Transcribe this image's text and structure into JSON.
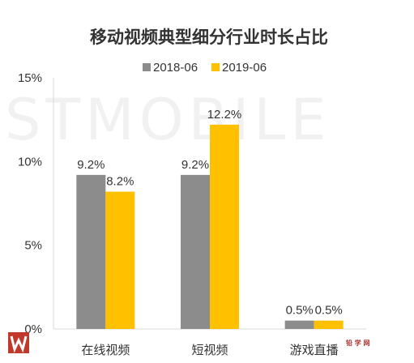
{
  "chart_data": {
    "type": "bar",
    "title": "移动视频典型细分行业时长占比",
    "categories": [
      "在线视频",
      "短视频",
      "游戏直播"
    ],
    "series": [
      {
        "name": "2018-06",
        "values": [
          9.2,
          9.2,
          0.5
        ],
        "labels": [
          "9.2%",
          "9.2%",
          "0.5%"
        ],
        "color": "#8c8c8c"
      },
      {
        "name": "2019-06",
        "values": [
          8.2,
          12.2,
          0.5
        ],
        "labels": [
          "8.2%",
          "12.2%",
          "0.5%"
        ],
        "color": "#ffc000"
      }
    ],
    "yticks": [
      {
        "value": 0,
        "label": "0%"
      },
      {
        "value": 5,
        "label": "5%"
      },
      {
        "value": 10,
        "label": "10%"
      },
      {
        "value": 15,
        "label": "15%"
      }
    ],
    "ylim": [
      0,
      15
    ],
    "xlabel": "",
    "ylabel": "",
    "grid": false,
    "legend": "top-center"
  },
  "watermark": "STMOBILE",
  "brand_logo_text": "铅 学 网"
}
